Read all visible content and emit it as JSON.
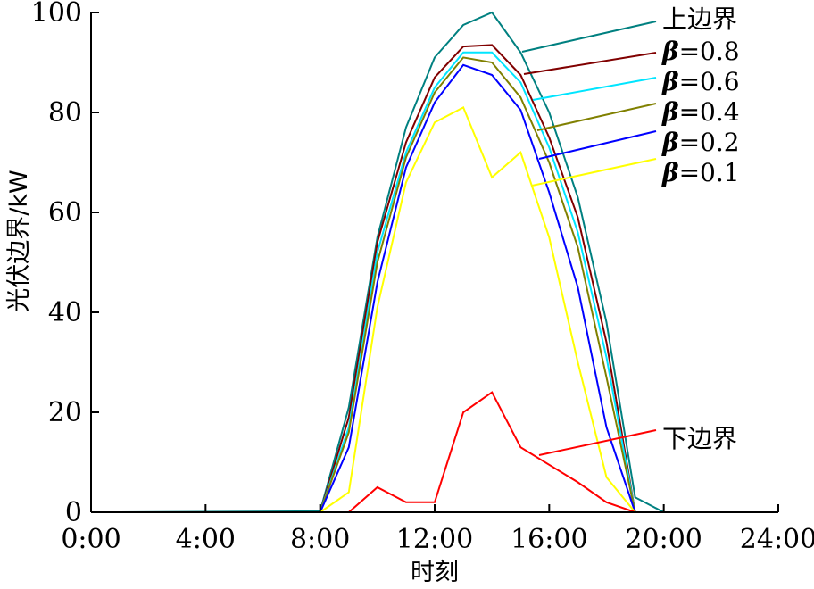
{
  "chart_data": {
    "type": "line",
    "title": "",
    "xlabel": "时刻",
    "ylabel": "光伏边界/kW",
    "xlim": [
      0,
      24
    ],
    "ylim": [
      0,
      100
    ],
    "x_ticks": [
      0,
      4,
      8,
      12,
      16,
      20,
      24
    ],
    "x_tick_labels": [
      "0:00",
      "4:00",
      "8:00",
      "12:00",
      "16:00",
      "20:00",
      "24:00"
    ],
    "y_ticks": [
      0,
      20,
      40,
      60,
      80,
      100
    ],
    "y_tick_labels": [
      "0",
      "20",
      "40",
      "60",
      "80",
      "100"
    ],
    "grid": false,
    "legend_placement": "top-right",
    "x": [
      1,
      8,
      9,
      10,
      11,
      12,
      13,
      14,
      15,
      16,
      17,
      18,
      19,
      20,
      24
    ],
    "series": [
      {
        "name": "上边界",
        "color": "#008080",
        "values": [
          0,
          0.2,
          21,
          55,
          77,
          91,
          97.5,
          100,
          92,
          80,
          63,
          38,
          3,
          0,
          0
        ]
      },
      {
        "name": "β=0.8",
        "color": "#800000",
        "values": [
          0,
          0,
          19,
          54,
          74,
          87,
          93.2,
          93.5,
          87.5,
          75,
          59,
          34,
          0,
          0,
          0
        ]
      },
      {
        "name": "β=0.6",
        "color": "#00e5ff",
        "values": [
          0,
          0,
          17,
          52,
          72,
          85,
          92,
          92,
          86,
          73,
          56,
          31,
          0,
          0,
          0
        ]
      },
      {
        "name": "β=0.4",
        "color": "#808000",
        "values": [
          0,
          0,
          16,
          50,
          71,
          84,
          91,
          90,
          83,
          70,
          53,
          27,
          0,
          0,
          0
        ]
      },
      {
        "name": "β=0.2",
        "color": "#0000ff",
        "values": [
          0,
          0,
          13,
          46,
          69,
          82,
          89.5,
          87.5,
          80.5,
          64,
          45,
          17,
          0,
          0,
          0
        ]
      },
      {
        "name": "β=0.1",
        "color": "#ffff00",
        "values": [
          0,
          0,
          4,
          41,
          66,
          78,
          81,
          67,
          72,
          55,
          30,
          7,
          0,
          0,
          0
        ]
      },
      {
        "name": "下边界",
        "color": "#ff0000",
        "values": [
          0,
          0,
          0,
          5,
          2,
          2,
          20,
          24,
          13,
          9.5,
          6,
          2,
          0,
          0,
          0
        ]
      }
    ]
  }
}
